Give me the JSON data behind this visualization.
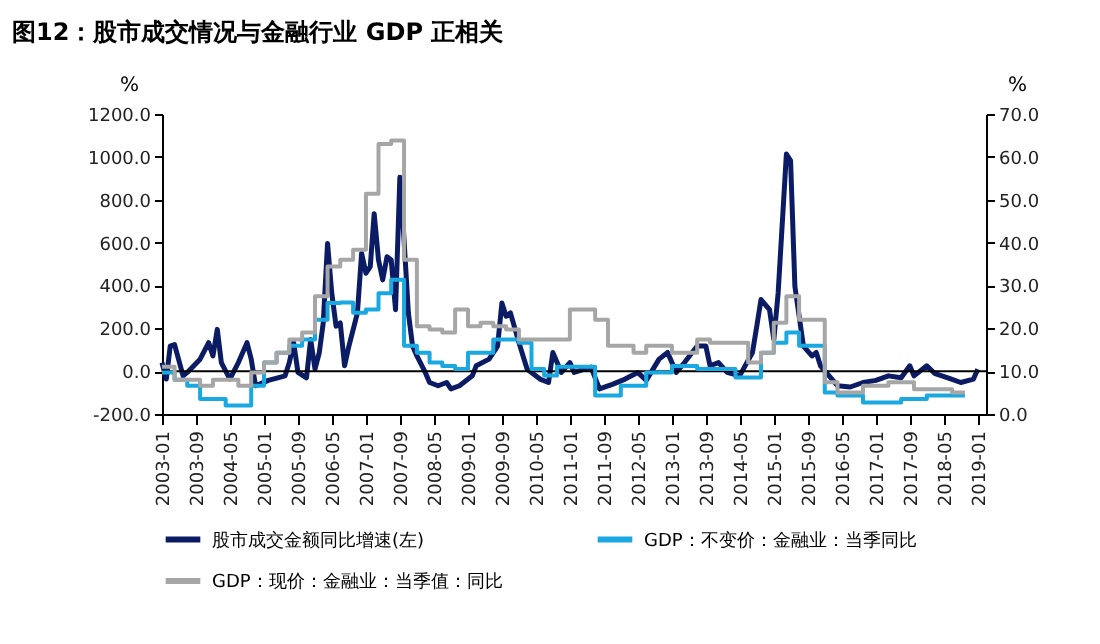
{
  "chart_data": {
    "type": "line",
    "title": "图12：股市成交情况与金融行业 GDP 正相关",
    "ylabel": "%",
    "y2label": "%",
    "xlim": [
      "2003-01",
      "2019-03"
    ],
    "xticks": [
      "2003-01",
      "2003-09",
      "2004-05",
      "2005-01",
      "2005-09",
      "2006-05",
      "2007-01",
      "2007-09",
      "2008-05",
      "2009-01",
      "2009-09",
      "2010-05",
      "2011-01",
      "2011-09",
      "2012-05",
      "2013-01",
      "2013-09",
      "2014-05",
      "2015-01",
      "2015-09",
      "2016-05",
      "2017-01",
      "2017-09",
      "2018-05",
      "2019-01"
    ],
    "ylim": [
      -200,
      1200
    ],
    "yticks": [
      {
        "value": -200,
        "label": "-200.0"
      },
      {
        "value": 0,
        "label": "0.0"
      },
      {
        "value": 200,
        "label": "200.0"
      },
      {
        "value": 400,
        "label": "400.0"
      },
      {
        "value": 600,
        "label": "600.0"
      },
      {
        "value": 800,
        "label": "800.0"
      },
      {
        "value": 1000,
        "label": "1000.0"
      },
      {
        "value": 1200,
        "label": "1200.0"
      }
    ],
    "y2lim": [
      0,
      70
    ],
    "y2ticks": [
      {
        "value": 0,
        "label": "0.0"
      },
      {
        "value": 10,
        "label": "10.0"
      },
      {
        "value": 20,
        "label": "20.0"
      },
      {
        "value": 30,
        "label": "30.0"
      },
      {
        "value": 40,
        "label": "40.0"
      },
      {
        "value": 50,
        "label": "50.0"
      },
      {
        "value": 60,
        "label": "60.0"
      },
      {
        "value": 70,
        "label": "70.0"
      }
    ],
    "legend": "bottom",
    "grid": false,
    "line_style": "solid",
    "ref_lines": [
      {
        "axis": "y",
        "value": 0,
        "color": "#000000"
      }
    ],
    "series": [
      {
        "name": "股市成交金额同比增速(左)",
        "color": "#0c1c64",
        "type": "line",
        "x": [
          "2003-01",
          "2003-02",
          "2003-03",
          "2003-04",
          "2003-06",
          "2003-07",
          "2003-10",
          "2003-12",
          "2004-01",
          "2004-02",
          "2004-03",
          "2004-05",
          "2004-07",
          "2004-09",
          "2004-10",
          "2004-11",
          "2005-02",
          "2005-06",
          "2005-07",
          "2005-08",
          "2005-09",
          "2005-11",
          "2005-12",
          "2006-01",
          "2006-02",
          "2006-03",
          "2006-04",
          "2006-05",
          "2006-06",
          "2006-07",
          "2006-08",
          "2006-09",
          "2006-11",
          "2006-12",
          "2007-01",
          "2007-02",
          "2007-03",
          "2007-04",
          "2007-05",
          "2007-06",
          "2007-07",
          "2007-08",
          "2007-09",
          "2007-10",
          "2007-11",
          "2007-12",
          "2008-01",
          "2008-03",
          "2008-04",
          "2008-06",
          "2008-08",
          "2008-09",
          "2008-11",
          "2009-02",
          "2009-03",
          "2009-06",
          "2009-08",
          "2009-09",
          "2009-10",
          "2009-11",
          "2010-01",
          "2010-03",
          "2010-06",
          "2010-08",
          "2010-09",
          "2010-11",
          "2011-01",
          "2011-02",
          "2011-06",
          "2011-08",
          "2011-11",
          "2012-02",
          "2012-05",
          "2012-07",
          "2012-10",
          "2012-12",
          "2013-02",
          "2013-04",
          "2013-07",
          "2013-09",
          "2013-10",
          "2013-12",
          "2014-02",
          "2014-05",
          "2014-08",
          "2014-09",
          "2014-10",
          "2014-12",
          "2015-01",
          "2015-02",
          "2015-04",
          "2015-05",
          "2015-06",
          "2015-08",
          "2015-10",
          "2015-11",
          "2015-12",
          "2016-02",
          "2016-04",
          "2016-07",
          "2016-10",
          "2017-01",
          "2017-04",
          "2017-07",
          "2017-09",
          "2017-10",
          "2018-01",
          "2018-03",
          "2018-06",
          "2018-09",
          "2018-12",
          "2019-01"
        ],
        "values": [
          40,
          -37,
          117,
          124,
          -22,
          -6,
          56,
          133,
          71,
          195,
          40,
          -37,
          40,
          133,
          56,
          -68,
          -43,
          -22,
          40,
          133,
          -6,
          -31,
          148,
          9,
          87,
          225,
          596,
          365,
          210,
          225,
          25,
          117,
          272,
          550,
          457,
          488,
          735,
          519,
          426,
          534,
          519,
          287,
          905,
          612,
          272,
          117,
          71,
          -6,
          -53,
          -68,
          -53,
          -83,
          -68,
          -22,
          25,
          56,
          117,
          318,
          256,
          272,
          133,
          9,
          -37,
          -53,
          87,
          -6,
          40,
          -6,
          19,
          -83,
          -62,
          -37,
          -6,
          -43,
          56,
          87,
          -6,
          40,
          117,
          117,
          25,
          40,
          -6,
          -22,
          87,
          210,
          334,
          287,
          148,
          365,
          1013,
          983,
          395,
          117,
          71,
          87,
          25,
          -22,
          -68,
          -74,
          -53,
          -43,
          -22,
          -31,
          25,
          -22,
          25,
          -12,
          -31,
          -53,
          -37,
          9
        ]
      },
      {
        "name": "GDP：不变价：金融业：当季同比",
        "color": "#1aa8e0",
        "type": "step",
        "axis": "y2",
        "x": [
          "2003-01",
          "2003-04",
          "2003-07",
          "2003-10",
          "2004-01",
          "2004-04",
          "2004-07",
          "2004-10",
          "2005-01",
          "2005-04",
          "2005-07",
          "2005-10",
          "2006-01",
          "2006-04",
          "2006-07",
          "2006-10",
          "2007-01",
          "2007-04",
          "2007-07",
          "2007-10",
          "2008-01",
          "2008-04",
          "2008-07",
          "2008-10",
          "2009-01",
          "2009-04",
          "2009-07",
          "2009-10",
          "2010-01",
          "2010-04",
          "2010-07",
          "2010-10",
          "2011-01",
          "2011-04",
          "2011-07",
          "2011-10",
          "2012-01",
          "2012-04",
          "2012-07",
          "2012-10",
          "2013-01",
          "2013-04",
          "2013-07",
          "2013-10",
          "2014-01",
          "2014-04",
          "2014-07",
          "2014-10",
          "2015-01",
          "2015-04",
          "2015-07",
          "2015-10",
          "2016-01",
          "2016-04",
          "2016-07",
          "2016-10",
          "2017-01",
          "2017-04",
          "2017-07",
          "2017-10",
          "2018-01",
          "2018-04",
          "2018-07",
          "2018-10"
        ],
        "values": [
          9.7,
          8,
          6.6,
          3.5,
          3.5,
          2,
          2,
          6.6,
          12,
          14.3,
          15.9,
          17.4,
          22,
          25.9,
          26,
          23.6,
          24.4,
          28.2,
          31.3,
          15.9,
          14.3,
          12,
          11.2,
          10.5,
          14.3,
          14.3,
          17.4,
          17.4,
          16.6,
          10.5,
          9,
          11,
          11,
          11,
          4.3,
          4.3,
          6.6,
          6.6,
          9.7,
          9.7,
          11.2,
          11.2,
          10.5,
          10.5,
          10.5,
          8.5,
          8.5,
          14.3,
          16.6,
          19,
          15.9,
          15.9,
          5,
          4.3,
          4.3,
          2.7,
          2.7,
          2.7,
          3.5,
          3.5,
          4.3,
          4.3,
          4.3,
          4.3
        ]
      },
      {
        "name": "GDP：现价：金融业：当季值：同比",
        "color": "#a6a6a6",
        "type": "step",
        "axis": "y2",
        "x": [
          "2003-01",
          "2003-04",
          "2003-07",
          "2003-10",
          "2004-01",
          "2004-04",
          "2004-07",
          "2004-10",
          "2005-01",
          "2005-04",
          "2005-07",
          "2005-10",
          "2006-01",
          "2006-04",
          "2006-07",
          "2006-10",
          "2007-01",
          "2007-04",
          "2007-07",
          "2007-10",
          "2008-01",
          "2008-04",
          "2008-07",
          "2008-10",
          "2009-01",
          "2009-04",
          "2009-07",
          "2009-10",
          "2010-01",
          "2010-04",
          "2010-07",
          "2010-10",
          "2011-01",
          "2011-04",
          "2011-07",
          "2011-10",
          "2012-01",
          "2012-04",
          "2012-07",
          "2012-10",
          "2013-01",
          "2013-04",
          "2013-07",
          "2013-10",
          "2014-01",
          "2014-04",
          "2014-07",
          "2014-10",
          "2015-01",
          "2015-04",
          "2015-07",
          "2015-10",
          "2016-01",
          "2016-04",
          "2016-07",
          "2016-10",
          "2017-01",
          "2017-04",
          "2017-07",
          "2017-10",
          "2018-01",
          "2018-04",
          "2018-07",
          "2018-10"
        ],
        "values": [
          11,
          8,
          8,
          6.6,
          8,
          8,
          6.6,
          9.7,
          12,
          14.3,
          17.4,
          19,
          27.5,
          34.4,
          36,
          38.3,
          51.4,
          63,
          63.8,
          36,
          20.5,
          19.7,
          19,
          24.4,
          20.5,
          21.3,
          20.5,
          19.7,
          17.4,
          17.4,
          17.4,
          17.4,
          24.4,
          24.4,
          22,
          15.9,
          15.9,
          14.3,
          15.9,
          15.9,
          14.3,
          14.3,
          17.4,
          16.6,
          16.6,
          16.6,
          12,
          14.3,
          21.3,
          27.5,
          22,
          22,
          7.4,
          5,
          5,
          6.6,
          6.6,
          7.4,
          7.4,
          5.8,
          5.8,
          5.8,
          5,
          5
        ]
      }
    ]
  }
}
